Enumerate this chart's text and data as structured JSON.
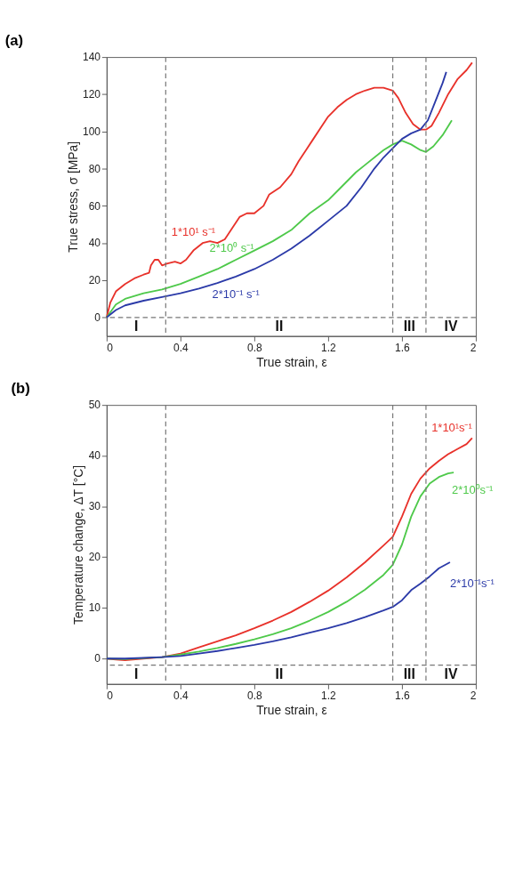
{
  "chart_data": [
    {
      "type": "line",
      "title": "(a)",
      "xlabel": "True strain, ε",
      "ylabel": "True stress, σ  [MPa]",
      "xlim": [
        0,
        2
      ],
      "xticks": [
        0,
        0.4,
        0.8,
        1.2,
        1.6,
        2
      ],
      "ylim": [
        -10,
        140
      ],
      "yticks": [
        0,
        20,
        40,
        60,
        80,
        100,
        120,
        140
      ],
      "grid": false,
      "marker": "none",
      "line_style": "solid",
      "series": [
        {
          "name": "1*10¹ s⁻¹",
          "color": "#e8312a",
          "x": [
            0,
            0.02,
            0.05,
            0.1,
            0.15,
            0.2,
            0.23,
            0.24,
            0.26,
            0.28,
            0.3,
            0.33,
            0.37,
            0.4,
            0.43,
            0.47,
            0.52,
            0.56,
            0.6,
            0.64,
            0.68,
            0.72,
            0.76,
            0.8,
            0.85,
            0.88,
            0.94,
            1.0,
            1.04,
            1.08,
            1.12,
            1.16,
            1.2,
            1.25,
            1.3,
            1.35,
            1.4,
            1.45,
            1.5,
            1.55,
            1.58,
            1.62,
            1.66,
            1.7,
            1.73,
            1.76,
            1.8,
            1.85,
            1.9,
            1.95,
            1.98
          ],
          "values": [
            0,
            8,
            14,
            18,
            21,
            23,
            24,
            28,
            31,
            31,
            28,
            29,
            30,
            29,
            31,
            36,
            40,
            41,
            40,
            42,
            48,
            54,
            56,
            56,
            60,
            66,
            70,
            77,
            84,
            90,
            96,
            102,
            108,
            113,
            117,
            120,
            122,
            123.5,
            123.5,
            122,
            118,
            110,
            104,
            101,
            101,
            103,
            110,
            120,
            128,
            133,
            137
          ]
        },
        {
          "name": "2*10⁰ s⁻¹",
          "color": "#4ec94a",
          "x": [
            0,
            0.05,
            0.1,
            0.2,
            0.3,
            0.4,
            0.5,
            0.6,
            0.7,
            0.8,
            0.9,
            1.0,
            1.1,
            1.2,
            1.27,
            1.35,
            1.4,
            1.5,
            1.55,
            1.6,
            1.65,
            1.7,
            1.73,
            1.77,
            1.82,
            1.87
          ],
          "values": [
            0,
            7,
            10,
            13,
            15,
            18,
            22,
            26,
            31,
            36,
            41,
            47,
            56,
            63,
            70,
            78,
            82,
            90,
            93,
            95,
            93,
            90,
            89,
            92,
            98,
            106
          ]
        },
        {
          "name": "2*10⁻¹ s⁻¹",
          "color": "#2b3aa8",
          "x": [
            0,
            0.05,
            0.1,
            0.2,
            0.3,
            0.4,
            0.5,
            0.6,
            0.7,
            0.8,
            0.9,
            1.0,
            1.1,
            1.2,
            1.3,
            1.38,
            1.45,
            1.5,
            1.55,
            1.6,
            1.65,
            1.7,
            1.74,
            1.78,
            1.82,
            1.84
          ],
          "values": [
            0,
            4,
            6.5,
            9,
            11,
            13,
            15.5,
            18.5,
            22,
            26,
            31,
            37,
            44,
            52,
            60,
            70,
            80,
            86,
            91,
            96,
            99,
            101,
            106,
            116,
            126,
            132
          ]
        }
      ],
      "ref_lines": [
        {
          "axis": "y",
          "value": 0,
          "color": "#777777",
          "line_style": "dashed"
        },
        {
          "axis": "x",
          "value": 0.32,
          "color": "#777777",
          "line_style": "dashed"
        },
        {
          "axis": "x",
          "value": 1.55,
          "color": "#777777",
          "line_style": "dashed"
        },
        {
          "axis": "x",
          "value": 1.73,
          "color": "#777777",
          "line_style": "dashed"
        }
      ],
      "annotations": [
        "I",
        "II",
        "III",
        "IV"
      ]
    },
    {
      "type": "line",
      "title": "(b)",
      "xlabel": "True strain, ε",
      "ylabel": "Temperature change, ΔT [°C]",
      "xlim": [
        0,
        2
      ],
      "xticks": [
        0,
        0.4,
        0.8,
        1.2,
        1.6,
        2
      ],
      "ylim": [
        -5,
        50
      ],
      "yticks": [
        0,
        10,
        20,
        30,
        40,
        50
      ],
      "grid": false,
      "marker": "none",
      "line_style": "solid",
      "series": [
        {
          "name": "1*10¹s⁻¹",
          "color": "#e8312a",
          "x": [
            0,
            0.05,
            0.1,
            0.2,
            0.3,
            0.4,
            0.5,
            0.6,
            0.7,
            0.8,
            0.9,
            1.0,
            1.1,
            1.2,
            1.3,
            1.4,
            1.5,
            1.55,
            1.6,
            1.65,
            1.7,
            1.75,
            1.8,
            1.85,
            1.9,
            1.95,
            1.98
          ],
          "values": [
            0,
            -0.2,
            -0.3,
            0,
            0.3,
            1,
            2.2,
            3.4,
            4.6,
            6,
            7.5,
            9.2,
            11.2,
            13.4,
            16,
            19,
            22.3,
            24,
            28,
            32.5,
            35.5,
            37.5,
            39,
            40.3,
            41.3,
            42.3,
            43.5
          ]
        },
        {
          "name": "2*10⁰s⁻¹",
          "color": "#4ec94a",
          "x": [
            0,
            0.1,
            0.3,
            0.4,
            0.5,
            0.6,
            0.7,
            0.8,
            0.9,
            1.0,
            1.1,
            1.2,
            1.3,
            1.4,
            1.5,
            1.55,
            1.6,
            1.65,
            1.7,
            1.75,
            1.8,
            1.85,
            1.88
          ],
          "values": [
            0,
            -0.1,
            0.3,
            0.8,
            1.4,
            2.1,
            2.9,
            3.8,
            4.8,
            6,
            7.5,
            9.2,
            11.2,
            13.6,
            16.5,
            18.5,
            22.5,
            28,
            32,
            34.5,
            35.8,
            36.5,
            36.7
          ]
        },
        {
          "name": "2*10⁻¹s⁻¹",
          "color": "#2b3aa8",
          "x": [
            0,
            0.1,
            0.3,
            0.4,
            0.5,
            0.6,
            0.7,
            0.8,
            0.9,
            1.0,
            1.1,
            1.2,
            1.3,
            1.4,
            1.5,
            1.55,
            1.6,
            1.65,
            1.7,
            1.75,
            1.8,
            1.86
          ],
          "values": [
            0,
            0,
            0.3,
            0.5,
            1,
            1.5,
            2.1,
            2.7,
            3.4,
            4.2,
            5.1,
            6,
            7,
            8.2,
            9.5,
            10.2,
            11.5,
            13.5,
            14.8,
            16.2,
            17.8,
            19
          ]
        }
      ],
      "ref_lines": [
        {
          "axis": "y",
          "value": -1.3,
          "color": "#777777",
          "line_style": "dashed"
        },
        {
          "axis": "x",
          "value": 0.32,
          "color": "#777777",
          "line_style": "dashed"
        },
        {
          "axis": "x",
          "value": 1.55,
          "color": "#777777",
          "line_style": "dashed"
        },
        {
          "axis": "x",
          "value": 1.73,
          "color": "#777777",
          "line_style": "dashed"
        }
      ],
      "annotations": [
        "I",
        "II",
        "III",
        "IV"
      ]
    }
  ]
}
